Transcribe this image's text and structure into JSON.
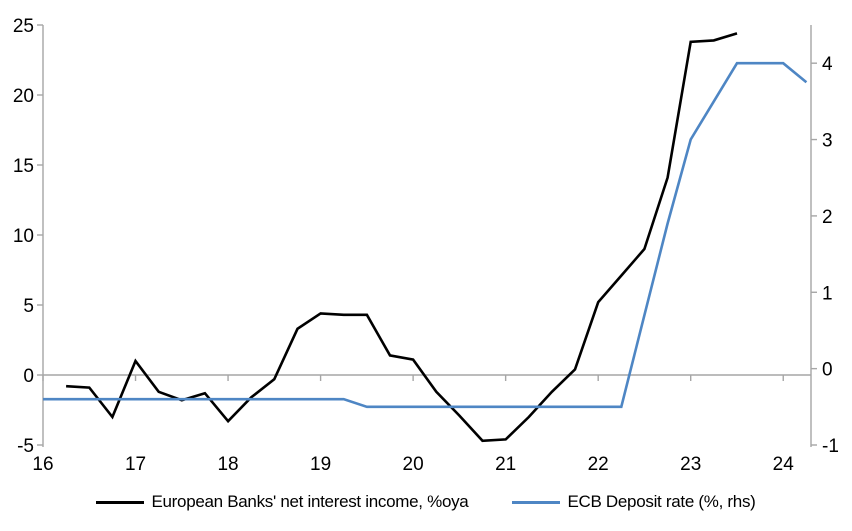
{
  "chart_data": {
    "type": "line",
    "title": "",
    "x_axis": {
      "range": [
        16,
        24.3
      ],
      "ticks": [
        16,
        17,
        18,
        19,
        20,
        21,
        22,
        23,
        24
      ],
      "tick_labels": [
        "16",
        "17",
        "18",
        "19",
        "20",
        "21",
        "22",
        "23",
        "24"
      ]
    },
    "left_axis": {
      "range": [
        -5,
        25
      ],
      "ticks": [
        25,
        20,
        15,
        10,
        5,
        0,
        -5
      ]
    },
    "right_axis": {
      "range": [
        -1,
        4.5
      ],
      "ticks": [
        4,
        3,
        2,
        1,
        0,
        -1
      ]
    },
    "grid": "zero-line-only",
    "legend_position": "bottom",
    "series": [
      {
        "name": "European Banks' net interest income, %oya",
        "axis": "left",
        "color": "#000000",
        "points": [
          [
            16.25,
            -0.8
          ],
          [
            16.5,
            -0.9
          ],
          [
            16.75,
            -3.0
          ],
          [
            17.0,
            1.0
          ],
          [
            17.25,
            -1.2
          ],
          [
            17.5,
            -1.8
          ],
          [
            17.75,
            -1.3
          ],
          [
            18.0,
            -3.3
          ],
          [
            18.25,
            -1.6
          ],
          [
            18.5,
            -0.3
          ],
          [
            18.75,
            3.3
          ],
          [
            19.0,
            4.4
          ],
          [
            19.25,
            4.3
          ],
          [
            19.5,
            4.3
          ],
          [
            19.75,
            1.4
          ],
          [
            20.0,
            1.1
          ],
          [
            20.25,
            -1.2
          ],
          [
            20.5,
            -2.9
          ],
          [
            20.75,
            -4.7
          ],
          [
            21.0,
            -4.6
          ],
          [
            21.25,
            -3.0
          ],
          [
            21.5,
            -1.2
          ],
          [
            21.75,
            0.4
          ],
          [
            22.0,
            5.2
          ],
          [
            22.25,
            7.1
          ],
          [
            22.5,
            9.0
          ],
          [
            22.75,
            14.1
          ],
          [
            23.0,
            23.8
          ],
          [
            23.25,
            23.9
          ],
          [
            23.5,
            24.4
          ]
        ]
      },
      {
        "name": "ECB Deposit rate (%, rhs)",
        "axis": "right",
        "color": "#4e86c4",
        "points": [
          [
            16.0,
            -0.4
          ],
          [
            16.25,
            -0.4
          ],
          [
            16.5,
            -0.4
          ],
          [
            16.75,
            -0.4
          ],
          [
            17.0,
            -0.4
          ],
          [
            17.25,
            -0.4
          ],
          [
            17.5,
            -0.4
          ],
          [
            17.75,
            -0.4
          ],
          [
            18.0,
            -0.4
          ],
          [
            18.25,
            -0.4
          ],
          [
            18.5,
            -0.4
          ],
          [
            18.75,
            -0.4
          ],
          [
            19.0,
            -0.4
          ],
          [
            19.25,
            -0.4
          ],
          [
            19.5,
            -0.5
          ],
          [
            19.75,
            -0.5
          ],
          [
            20.0,
            -0.5
          ],
          [
            20.25,
            -0.5
          ],
          [
            20.5,
            -0.5
          ],
          [
            20.75,
            -0.5
          ],
          [
            21.0,
            -0.5
          ],
          [
            21.25,
            -0.5
          ],
          [
            21.5,
            -0.5
          ],
          [
            21.75,
            -0.5
          ],
          [
            22.0,
            -0.5
          ],
          [
            22.25,
            -0.5
          ],
          [
            22.5,
            0.7
          ],
          [
            22.75,
            1.9
          ],
          [
            23.0,
            3.0
          ],
          [
            23.25,
            3.5
          ],
          [
            23.5,
            4.0
          ],
          [
            23.75,
            4.0
          ],
          [
            24.0,
            4.0
          ],
          [
            24.25,
            3.75
          ]
        ]
      }
    ]
  },
  "colors": {
    "axis": "#a6a6a6",
    "text": "#000000",
    "background": "#ffffff"
  }
}
